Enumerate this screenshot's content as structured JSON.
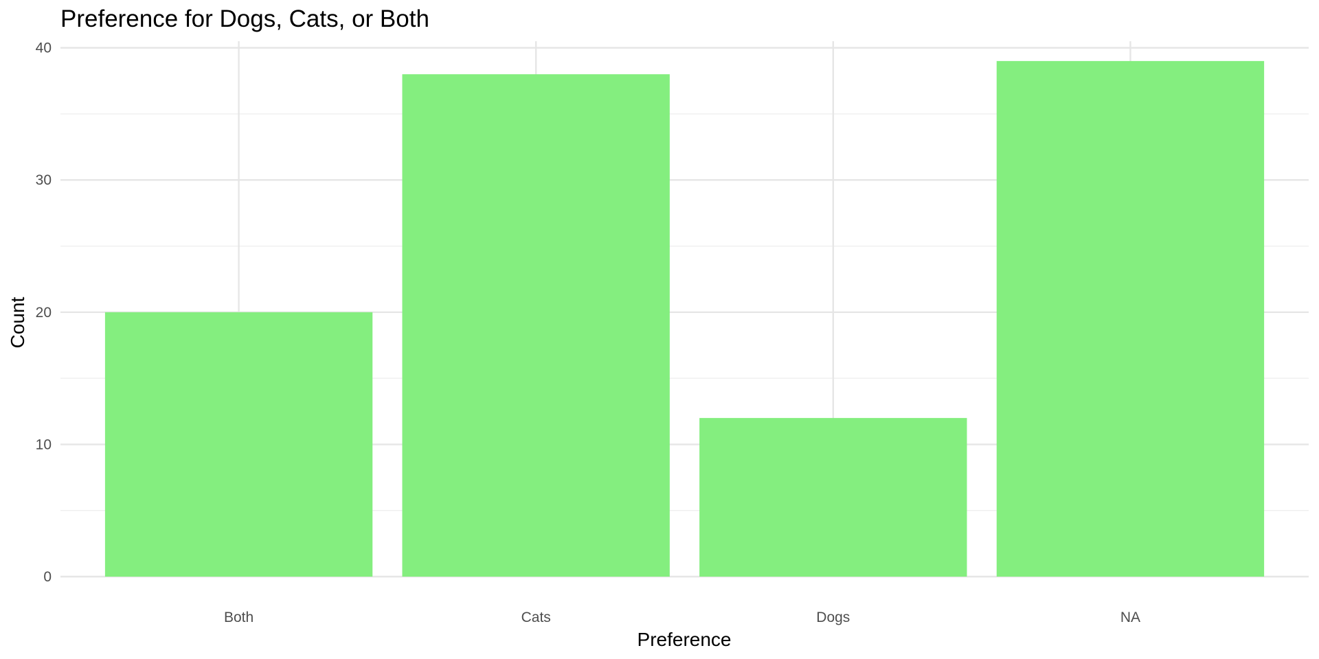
{
  "chart_data": {
    "type": "bar",
    "title": "Preference for Dogs, Cats, or Both",
    "xlabel": "Preference",
    "ylabel": "Count",
    "categories": [
      "Both",
      "Cats",
      "Dogs",
      "NA"
    ],
    "values": [
      20,
      38,
      12,
      39
    ],
    "ylim": [
      0,
      40.5
    ],
    "yticks": [
      "0",
      "10",
      "20",
      "30",
      "40"
    ],
    "ytick_values": [
      0,
      10,
      20,
      30,
      40
    ],
    "grid": true,
    "bar_color": "#84ee7f"
  }
}
